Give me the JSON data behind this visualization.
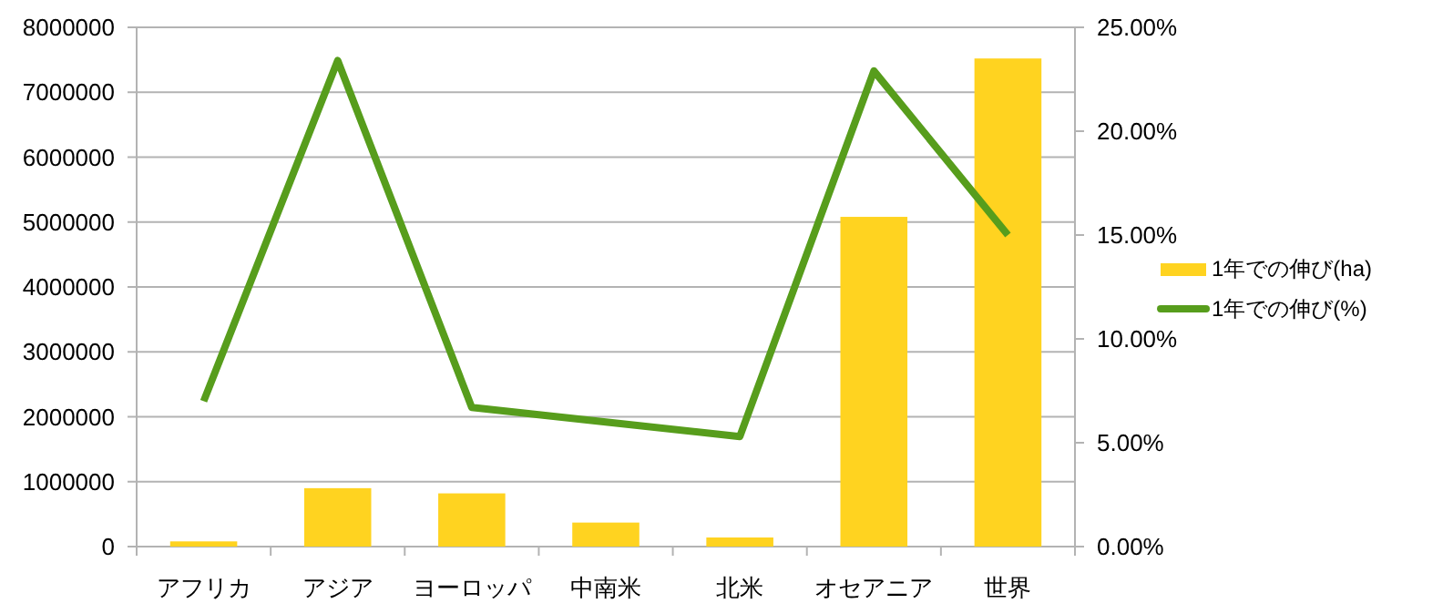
{
  "chart_data": {
    "type": "bar",
    "categories": [
      "アフリカ",
      "アジア",
      "ヨーロッパ",
      "中南米",
      "北米",
      "オセアニア",
      "世界"
    ],
    "series": [
      {
        "name": "1年での伸び(ha)",
        "color": "#ffd320",
        "values": [
          80000,
          900000,
          820000,
          370000,
          140000,
          5080000,
          7520000
        ]
      },
      {
        "name": "1年での伸び(%)",
        "type": "line",
        "axis": "y2",
        "color": "#579d1c",
        "values": [
          7.0,
          23.4,
          6.7,
          6.0,
          5.3,
          22.9,
          15.0
        ]
      }
    ],
    "ylim": [
      0,
      8000000
    ],
    "yticks": [
      0,
      1000000,
      2000000,
      3000000,
      4000000,
      5000000,
      6000000,
      7000000,
      8000000
    ],
    "y2lim": [
      0,
      25
    ],
    "y2ticks": [
      {
        "value": 0,
        "label": "0.00%"
      },
      {
        "value": 5,
        "label": "5.00%"
      },
      {
        "value": 10,
        "label": "10.00%"
      },
      {
        "value": 15,
        "label": "15.00%"
      },
      {
        "value": 20,
        "label": "20.00%"
      },
      {
        "value": 25,
        "label": "25.00%"
      }
    ],
    "grid": "y",
    "legend": "right",
    "marker": "none"
  }
}
